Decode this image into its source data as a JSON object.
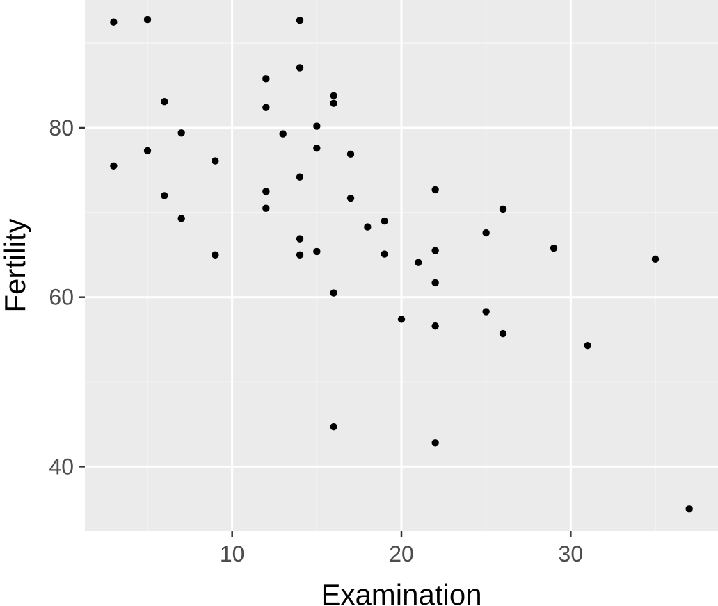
{
  "chart_data": {
    "type": "scatter",
    "title": "",
    "xlabel": "Examination",
    "ylabel": "Fertility",
    "xlim": [
      1.3,
      38.7
    ],
    "ylim": [
      32.4,
      95.1
    ],
    "x_ticks": [
      10,
      20,
      30
    ],
    "y_ticks": [
      40,
      60,
      80
    ],
    "x_tick_labels": [
      "10",
      "20",
      "30"
    ],
    "y_tick_labels": [
      "40",
      "60",
      "80"
    ],
    "grid": true,
    "legend": "none",
    "colors": {
      "panel_background": "#ebebeb",
      "grid_major": "#ffffff",
      "grid_minor": "#f5f5f5",
      "points": "#000000",
      "tick_text": "#4d4d4d",
      "tick_mark": "#333333"
    },
    "points": [
      {
        "x": 3,
        "y": 92.5
      },
      {
        "x": 5,
        "y": 92.8
      },
      {
        "x": 14,
        "y": 92.7
      },
      {
        "x": 14,
        "y": 87.1
      },
      {
        "x": 12,
        "y": 85.8
      },
      {
        "x": 16,
        "y": 83.8
      },
      {
        "x": 6,
        "y": 83.1
      },
      {
        "x": 16,
        "y": 82.9
      },
      {
        "x": 12,
        "y": 82.4
      },
      {
        "x": 15,
        "y": 80.2
      },
      {
        "x": 7,
        "y": 79.4
      },
      {
        "x": 13,
        "y": 79.3
      },
      {
        "x": 15,
        "y": 77.6
      },
      {
        "x": 5,
        "y": 77.3
      },
      {
        "x": 17,
        "y": 76.9
      },
      {
        "x": 9,
        "y": 76.1
      },
      {
        "x": 3,
        "y": 75.5
      },
      {
        "x": 14,
        "y": 74.2
      },
      {
        "x": 12,
        "y": 72.5
      },
      {
        "x": 22,
        "y": 72.7
      },
      {
        "x": 6,
        "y": 72.0
      },
      {
        "x": 17,
        "y": 71.7
      },
      {
        "x": 12,
        "y": 70.5
      },
      {
        "x": 26,
        "y": 70.4
      },
      {
        "x": 7,
        "y": 69.3
      },
      {
        "x": 19,
        "y": 69.0
      },
      {
        "x": 18,
        "y": 68.3
      },
      {
        "x": 25,
        "y": 67.6
      },
      {
        "x": 14,
        "y": 66.9
      },
      {
        "x": 29,
        "y": 65.8
      },
      {
        "x": 15,
        "y": 65.4
      },
      {
        "x": 22,
        "y": 65.5
      },
      {
        "x": 19,
        "y": 65.1
      },
      {
        "x": 9,
        "y": 65.0
      },
      {
        "x": 14,
        "y": 65.0
      },
      {
        "x": 35,
        "y": 64.5
      },
      {
        "x": 21,
        "y": 64.1
      },
      {
        "x": 22,
        "y": 61.7
      },
      {
        "x": 16,
        "y": 60.5
      },
      {
        "x": 25,
        "y": 58.3
      },
      {
        "x": 20,
        "y": 57.4
      },
      {
        "x": 22,
        "y": 56.6
      },
      {
        "x": 26,
        "y": 55.7
      },
      {
        "x": 31,
        "y": 54.3
      },
      {
        "x": 16,
        "y": 44.7
      },
      {
        "x": 22,
        "y": 42.8
      },
      {
        "x": 37,
        "y": 35.0
      }
    ]
  }
}
